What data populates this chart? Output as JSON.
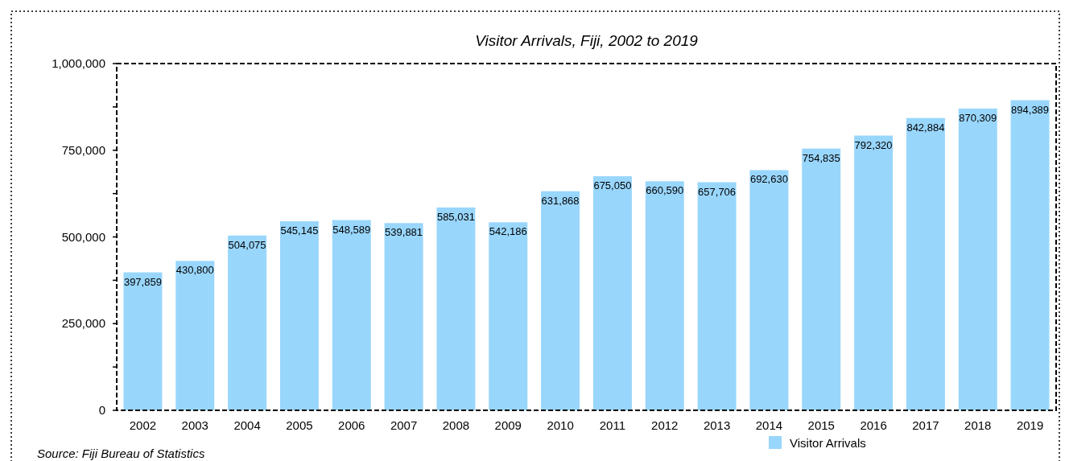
{
  "chart_data": {
    "type": "bar",
    "title": "Visitor Arrivals, Fiji, 2002 to 2019",
    "categories": [
      "2002",
      "2003",
      "2004",
      "2005",
      "2006",
      "2007",
      "2008",
      "2009",
      "2010",
      "2011",
      "2012",
      "2013",
      "2014",
      "2015",
      "2016",
      "2017",
      "2018",
      "2019"
    ],
    "series": [
      {
        "name": "Visitor Arrivals",
        "color": "#99d6fc",
        "values": [
          397859,
          430800,
          504075,
          545145,
          548589,
          539881,
          585031,
          542186,
          631868,
          675050,
          660590,
          657706,
          692630,
          754835,
          792320,
          842884,
          870309,
          894389
        ],
        "value_labels": [
          "397,859",
          "430,800",
          "504,075",
          "545,145",
          "548,589",
          "539,881",
          "585,031",
          "542,186",
          "631,868",
          "675,050",
          "660,590",
          "657,706",
          "692,630",
          "754,835",
          "792,320",
          "842,884",
          "870,309",
          "894,389"
        ]
      }
    ],
    "ylim": [
      0,
      1000000
    ],
    "yticks": [
      {
        "value": 0,
        "label": "0"
      },
      {
        "value": 125000,
        "label": null
      },
      {
        "value": 250000,
        "label": "250,000"
      },
      {
        "value": 375000,
        "label": null
      },
      {
        "value": 500000,
        "label": "500,000"
      },
      {
        "value": 625000,
        "label": null
      },
      {
        "value": 750000,
        "label": "750,000"
      },
      {
        "value": 875000,
        "label": null
      },
      {
        "value": 1000000,
        "label": "1,000,000"
      }
    ],
    "legend": "bottom right",
    "annotations": [
      "Source: Fiji Bureau of Statistics"
    ]
  }
}
